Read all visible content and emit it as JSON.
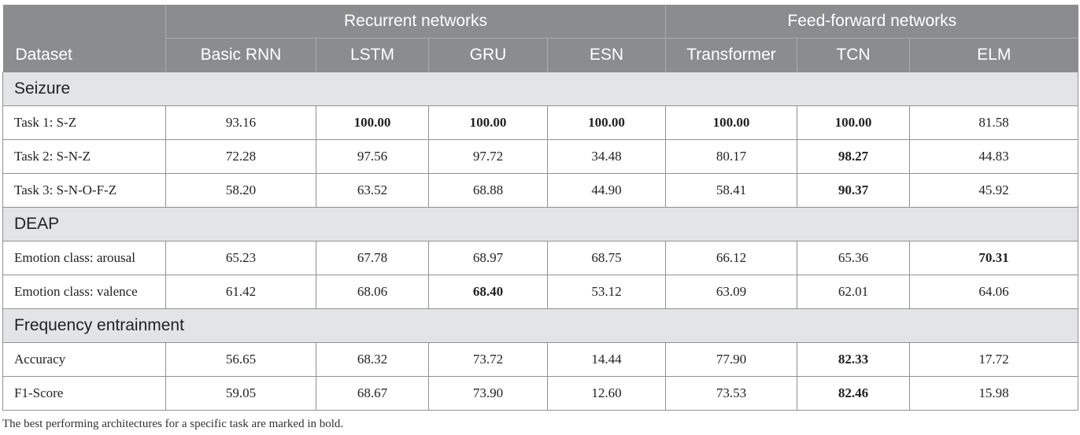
{
  "table": {
    "group_headers": [
      "Recurrent networks",
      "Feed-forward networks"
    ],
    "columns": [
      "Dataset",
      "Basic RNN",
      "LSTM",
      "GRU",
      "ESN",
      "Transformer",
      "TCN",
      "ELM"
    ],
    "sections": [
      {
        "title": "Seizure",
        "rows": [
          {
            "label": "Task 1: S-Z",
            "values": [
              "93.16",
              "100.00",
              "100.00",
              "100.00",
              "100.00",
              "100.00",
              "81.58"
            ],
            "bold": [
              false,
              true,
              true,
              true,
              true,
              true,
              false
            ]
          },
          {
            "label": "Task 2: S-N-Z",
            "values": [
              "72.28",
              "97.56",
              "97.72",
              "34.48",
              "80.17",
              "98.27",
              "44.83"
            ],
            "bold": [
              false,
              false,
              false,
              false,
              false,
              true,
              false
            ]
          },
          {
            "label": "Task 3: S-N-O-F-Z",
            "values": [
              "58.20",
              "63.52",
              "68.88",
              "44.90",
              "58.41",
              "90.37",
              "45.92"
            ],
            "bold": [
              false,
              false,
              false,
              false,
              false,
              true,
              false
            ]
          }
        ]
      },
      {
        "title": "DEAP",
        "rows": [
          {
            "label": "Emotion class: arousal",
            "values": [
              "65.23",
              "67.78",
              "68.97",
              "68.75",
              "66.12",
              "65.36",
              "70.31"
            ],
            "bold": [
              false,
              false,
              false,
              false,
              false,
              false,
              true
            ]
          },
          {
            "label": "Emotion class: valence",
            "values": [
              "61.42",
              "68.06",
              "68.40",
              "53.12",
              "63.09",
              "62.01",
              "64.06"
            ],
            "bold": [
              false,
              false,
              true,
              false,
              false,
              false,
              false
            ]
          }
        ]
      },
      {
        "title": "Frequency entrainment",
        "rows": [
          {
            "label": "Accuracy",
            "values": [
              "56.65",
              "68.32",
              "73.72",
              "14.44",
              "77.90",
              "82.33",
              "17.72"
            ],
            "bold": [
              false,
              false,
              false,
              false,
              false,
              true,
              false
            ]
          },
          {
            "label": "F1-Score",
            "values": [
              "59.05",
              "68.67",
              "73.90",
              "12.60",
              "73.53",
              "82.46",
              "15.98"
            ],
            "bold": [
              false,
              false,
              false,
              false,
              false,
              true,
              false
            ]
          }
        ]
      }
    ]
  },
  "footnote": "The best performing architectures for a specific task are marked in bold."
}
